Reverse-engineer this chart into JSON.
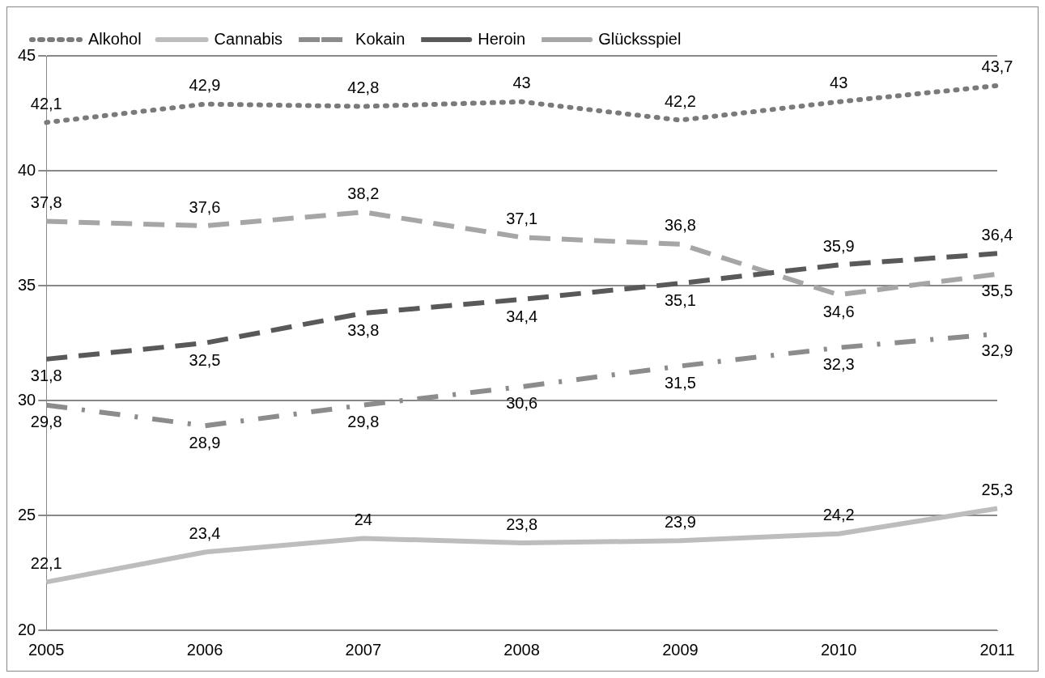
{
  "chart_data": {
    "type": "line",
    "categories": [
      "2005",
      "2006",
      "2007",
      "2008",
      "2009",
      "2010",
      "2011"
    ],
    "series": [
      {
        "name": "Alkohol",
        "color": "#7a7a7a",
        "line_style": "dotted",
        "values": [
          42.1,
          42.9,
          42.8,
          43,
          42.2,
          43,
          43.7
        ],
        "value_labels": [
          "42,1",
          "42,9",
          "42,8",
          "43",
          "42,2",
          "43",
          "43,7"
        ]
      },
      {
        "name": "Cannabis",
        "color": "#bdbdbd",
        "line_style": "solid",
        "values": [
          22.1,
          23.4,
          24,
          23.8,
          23.9,
          24.2,
          25.3
        ],
        "value_labels": [
          "22,1",
          "23,4",
          "24",
          "23,8",
          "23,9",
          "24,2",
          "25,3"
        ]
      },
      {
        "name": "Kokain",
        "color": "#8c8c8c",
        "line_style": "dashed",
        "values": [
          29.8,
          28.9,
          29.8,
          30.6,
          31.5,
          32.3,
          32.9
        ],
        "value_labels": [
          "29,8",
          "28,9",
          "29,8",
          "30,6",
          "31,5",
          "32,3",
          "32,9"
        ]
      },
      {
        "name": "Heroin",
        "color": "#595959",
        "line_style": "dashed",
        "values": [
          31.8,
          32.5,
          33.8,
          34.4,
          35.1,
          35.9,
          36.4
        ],
        "value_labels": [
          "31,8",
          "32,5",
          "33,8",
          "34,4",
          "35,1",
          "35,9",
          "36,4"
        ]
      },
      {
        "name": "Glücksspiel",
        "color": "#a6a6a6",
        "line_style": "dashed",
        "values": [
          37.8,
          37.6,
          38.2,
          37.1,
          36.8,
          34.6,
          35.5
        ],
        "value_labels": [
          "37,8",
          "37,6",
          "38,2",
          "37,1",
          "36,8",
          "34,6",
          "35,5"
        ]
      }
    ],
    "ylim": [
      20,
      45
    ],
    "yticks": [
      20,
      25,
      30,
      35,
      40,
      45
    ],
    "grid": "y",
    "legend": "top left",
    "marker": "none"
  }
}
